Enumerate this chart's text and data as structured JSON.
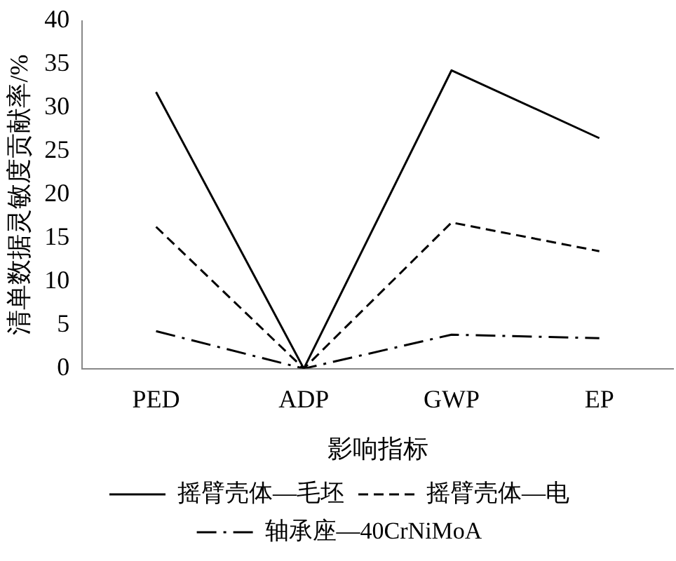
{
  "chart_data": {
    "type": "line",
    "xlabel": "影响指标",
    "ylabel": "清单数据灵敏度贡献率/%",
    "categories": [
      "PED",
      "ADP",
      "GWP",
      "EP"
    ],
    "series": [
      {
        "name": "摇臂壳体—毛坯",
        "color": "#000000",
        "line_style": "solid",
        "values": [
          31.8,
          0,
          34.3,
          26.5
        ]
      },
      {
        "name": "摇臂壳体—电",
        "color": "#000000",
        "line_style": "dashed",
        "values": [
          16.3,
          0,
          16.8,
          13.5
        ]
      },
      {
        "name": "轴承座—40CrNiMoA",
        "color": "#000000",
        "line_style": "dashdot",
        "values": [
          4.3,
          0,
          3.9,
          3.5
        ]
      }
    ],
    "ylim": [
      0,
      40
    ],
    "yticks": [
      0,
      5,
      10,
      15,
      20,
      25,
      30,
      35,
      40
    ],
    "grid": false,
    "legend": "bottom",
    "marker": "none"
  }
}
